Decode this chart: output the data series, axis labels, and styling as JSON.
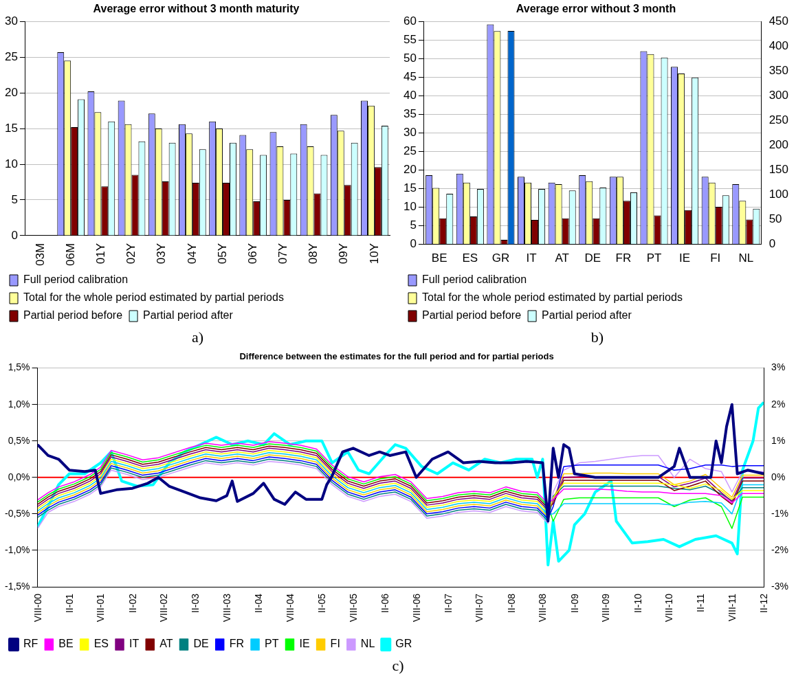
{
  "chart_data": [
    {
      "type": "bar",
      "title": "Average error without 3 month maturity",
      "categories": [
        "03M",
        "06M",
        "01Y",
        "02Y",
        "03Y",
        "04Y",
        "05Y",
        "06Y",
        "07Y",
        "08Y",
        "09Y",
        "10Y"
      ],
      "ylim": [
        0,
        30
      ],
      "yticks": [
        0,
        5,
        10,
        15,
        20,
        25,
        30
      ],
      "grid": "y",
      "legend": "bottom",
      "annotations": [
        "a)"
      ],
      "series": [
        {
          "name": "Full period calibration",
          "color": "#9999ff",
          "values": [
            null,
            25.7,
            20.2,
            18.9,
            17.1,
            15.6,
            16.0,
            14.1,
            14.5,
            15.6,
            16.9,
            18.9
          ]
        },
        {
          "name": "Total for the whole period estimated by partial periods",
          "color": "#ffff99",
          "values": [
            null,
            24.5,
            17.3,
            15.6,
            15.0,
            14.3,
            15.0,
            12.1,
            12.5,
            12.5,
            14.7,
            18.2
          ]
        },
        {
          "name": "Partial period before",
          "color": "#800000",
          "values": [
            null,
            15.2,
            6.9,
            8.5,
            7.6,
            7.4,
            7.4,
            4.8,
            5.0,
            5.9,
            7.1,
            9.6
          ]
        },
        {
          "name": "Partial period after",
          "color": "#ccffff",
          "values": [
            null,
            19.1,
            16.0,
            13.2,
            13.0,
            12.1,
            13.0,
            11.3,
            11.5,
            11.3,
            13.0,
            15.4
          ]
        }
      ]
    },
    {
      "type": "bar",
      "title": "Average error without 3 month",
      "categories": [
        "BE",
        "ES",
        "GR",
        "IT",
        "AT",
        "DE",
        "FR",
        "PT",
        "IE",
        "FI",
        "NL"
      ],
      "ylim": [
        0,
        60
      ],
      "yticks": [
        0,
        5,
        10,
        15,
        20,
        25,
        30,
        35,
        40,
        45,
        50,
        55,
        60
      ],
      "y2lim": [
        0,
        450
      ],
      "y2ticks": [
        0,
        50,
        100,
        150,
        200,
        250,
        300,
        350,
        400,
        450
      ],
      "grid": "y",
      "legend": "bottom",
      "annotations": [
        "b)"
      ],
      "series": [
        {
          "name": "Full period calibration",
          "color": "#9999ff",
          "values": [
            18.6,
            19.0,
            59.2,
            18.2,
            16.6,
            18.6,
            18.2,
            52.0,
            47.8,
            18.2,
            16.2
          ]
        },
        {
          "name": "Total for the whole period estimated by partial periods",
          "color": "#ffff99",
          "values": [
            15.2,
            16.6,
            57.4,
            16.6,
            16.2,
            17.0,
            18.2,
            51.2,
            46.0,
            16.6,
            11.7
          ]
        },
        {
          "name": "Partial period before",
          "color": "#800000",
          "values": [
            7.0,
            7.5,
            1.2,
            6.6,
            7.0,
            7.0,
            11.7,
            7.8,
            9.2,
            10.1,
            6.7
          ]
        },
        {
          "name": "Partial period after",
          "color": "#ccffff",
          "values": [
            13.6,
            14.9,
            null,
            14.9,
            14.5,
            15.3,
            14.0,
            50.3,
            44.9,
            13.2,
            9.6
          ]
        },
        {
          "color": "#0066cc",
          "axis": "y2",
          "values": [
            null,
            null,
            431,
            null,
            null,
            null,
            null,
            null,
            null,
            null,
            null
          ]
        }
      ]
    },
    {
      "type": "line",
      "title": "Difference between the estimates for the full period and for partial periods",
      "legend": "bottom",
      "grid": "y",
      "annotations": [
        "c)"
      ],
      "xlim": [
        "2000-08",
        "2012-02"
      ],
      "xticks": [
        {
          "value": "2000-08",
          "label": "VIII-00"
        },
        {
          "value": "2001-02",
          "label": "II-01"
        },
        {
          "value": "2001-08",
          "label": "VIII-01"
        },
        {
          "value": "2002-02",
          "label": "II-02"
        },
        {
          "value": "2002-08",
          "label": "VIII-02"
        },
        {
          "value": "2003-02",
          "label": "II-03"
        },
        {
          "value": "2003-08",
          "label": "VIII-03"
        },
        {
          "value": "2004-02",
          "label": "II-04"
        },
        {
          "value": "2004-08",
          "label": "VIII-04"
        },
        {
          "value": "2005-02",
          "label": "II-05"
        },
        {
          "value": "2005-08",
          "label": "VIII-05"
        },
        {
          "value": "2006-02",
          "label": "II-06"
        },
        {
          "value": "2006-08",
          "label": "VIII-06"
        },
        {
          "value": "2007-02",
          "label": "II-07"
        },
        {
          "value": "2007-08",
          "label": "VIII-07"
        },
        {
          "value": "2008-02",
          "label": "II-08"
        },
        {
          "value": "2008-08",
          "label": "VIII-08"
        },
        {
          "value": "2009-02",
          "label": "II-09"
        },
        {
          "value": "2009-08",
          "label": "VIII-09"
        },
        {
          "value": "2010-02",
          "label": "II-10"
        },
        {
          "value": "2010-08",
          "label": "VIII-10"
        },
        {
          "value": "2011-02",
          "label": "II-11"
        },
        {
          "value": "2011-08",
          "label": "VIII-11"
        },
        {
          "value": "2012-02",
          "label": "II-12"
        }
      ],
      "ylim": [
        -1.5,
        1.5
      ],
      "yticks": [
        {
          "value": -1.5,
          "label": "-1,5%"
        },
        {
          "value": -1.0,
          "label": "-1,0%"
        },
        {
          "value": -0.5,
          "label": "-0,5%"
        },
        {
          "value": 0,
          "label": "0,0%"
        },
        {
          "value": 0.5,
          "label": "0,5%"
        },
        {
          "value": 1.0,
          "label": "1,0%"
        },
        {
          "value": 1.5,
          "label": "1,5%"
        }
      ],
      "y2lim": [
        -3,
        3
      ],
      "y2ticks": [
        {
          "value": -3,
          "label": "-3%"
        },
        {
          "value": -2,
          "label": "-2%"
        },
        {
          "value": -1,
          "label": "-1%"
        },
        {
          "value": 0,
          "label": "0%"
        },
        {
          "value": 1,
          "label": "1%"
        },
        {
          "value": 2,
          "label": "2%"
        },
        {
          "value": 3,
          "label": "3%"
        }
      ],
      "ref_lines": [
        {
          "axis": "y",
          "value": 0,
          "color": "#ff0000"
        }
      ],
      "x": [
        "2000-08",
        "2000-10",
        "2000-12",
        "2001-03",
        "2001-06",
        "2001-08",
        "2001-10",
        "2002-01",
        "2002-04",
        "2002-07",
        "2002-10",
        "2003-01",
        "2003-04",
        "2003-07",
        "2003-10",
        "2004-01",
        "2004-04",
        "2004-07",
        "2004-10",
        "2005-01",
        "2005-04",
        "2005-07",
        "2005-10",
        "2006-01",
        "2006-04",
        "2006-07",
        "2006-10",
        "2007-01",
        "2007-04",
        "2007-07",
        "2007-10",
        "2008-01",
        "2008-04",
        "2008-07",
        "2008-09",
        "2008-10",
        "2008-12",
        "2009-03",
        "2009-06",
        "2009-09",
        "2009-12",
        "2010-03",
        "2010-06",
        "2010-09",
        "2010-12",
        "2011-03",
        "2011-06",
        "2011-08",
        "2011-10",
        "2011-12",
        "2012-02"
      ],
      "series": [
        {
          "name": "RF",
          "color": "#000080",
          "axis": "y2",
          "x": [
            "2000-08",
            "2000-10",
            "2000-12",
            "2001-02",
            "2001-05",
            "2001-07",
            "2001-08",
            "2001-11",
            "2002-02",
            "2002-05",
            "2002-07",
            "2002-09",
            "2002-12",
            "2003-03",
            "2003-06",
            "2003-08",
            "2003-09",
            "2003-10",
            "2004-01",
            "2004-03",
            "2004-05",
            "2004-07",
            "2004-09",
            "2004-11",
            "2005-02",
            "2005-03",
            "2005-04",
            "2005-06",
            "2005-08",
            "2005-11",
            "2006-01",
            "2006-03",
            "2006-06",
            "2006-08",
            "2006-11",
            "2007-02",
            "2007-05",
            "2007-08",
            "2007-11",
            "2008-02",
            "2008-05",
            "2008-08",
            "2008-09",
            "2008-10",
            "2008-11",
            "2008-12",
            "2009-01",
            "2009-02",
            "2009-06",
            "2010-01",
            "2010-06",
            "2010-09",
            "2010-10",
            "2010-12",
            "2011-04",
            "2011-05",
            "2011-06",
            "2011-07",
            "2011-08",
            "2011-09",
            "2011-11",
            "2012-02"
          ],
          "values": [
            0.9,
            0.6,
            0.5,
            0.2,
            0.16,
            0.2,
            -0.44,
            -0.34,
            -0.3,
            -0.16,
            0.0,
            -0.24,
            -0.4,
            -0.56,
            -0.64,
            -0.5,
            -0.1,
            -0.66,
            -0.44,
            -0.16,
            -0.6,
            -0.74,
            -0.4,
            -0.6,
            -0.6,
            -0.2,
            0.04,
            0.7,
            0.8,
            0.6,
            0.7,
            0.6,
            0.7,
            0.0,
            0.5,
            0.7,
            0.4,
            0.44,
            0.4,
            0.4,
            0.44,
            0.4,
            -1.2,
            0.8,
            0.0,
            0.9,
            0.8,
            0.1,
            0.0,
            0.0,
            0.0,
            0.3,
            0.8,
            0.0,
            0.0,
            1.0,
            0.4,
            1.4,
            2.0,
            0.1,
            0.2,
            0.1
          ]
        },
        {
          "name": "BE",
          "color": "#ff00ff",
          "values": [
            -0.31,
            -0.21,
            -0.13,
            -0.06,
            0.04,
            0.14,
            0.37,
            0.31,
            0.24,
            0.27,
            0.34,
            0.41,
            0.47,
            0.44,
            0.47,
            0.44,
            0.49,
            0.47,
            0.44,
            0.39,
            0.17,
            0.01,
            -0.06,
            0.01,
            0.04,
            -0.06,
            -0.29,
            -0.26,
            -0.21,
            -0.19,
            -0.21,
            -0.13,
            -0.19,
            -0.21,
            -0.36,
            -0.3,
            -0.16,
            -0.16,
            -0.16,
            -0.17,
            -0.19,
            -0.2,
            -0.2,
            -0.22,
            -0.22,
            -0.22,
            -0.25,
            -0.35,
            -0.22,
            -0.22,
            -0.22
          ]
        },
        {
          "name": "ES",
          "color": "#ffff00",
          "values": [
            -0.43,
            -0.33,
            -0.25,
            -0.18,
            -0.08,
            0.02,
            0.25,
            0.19,
            0.12,
            0.15,
            0.22,
            0.29,
            0.35,
            0.32,
            0.35,
            0.32,
            0.37,
            0.35,
            0.32,
            0.27,
            0.05,
            -0.11,
            -0.18,
            -0.11,
            -0.08,
            -0.18,
            -0.41,
            -0.38,
            -0.33,
            -0.31,
            -0.33,
            -0.25,
            -0.31,
            -0.33,
            -0.48,
            -0.28,
            -0.08,
            -0.08,
            -0.08,
            -0.08,
            -0.08,
            -0.08,
            -0.08,
            -0.1,
            -0.15,
            -0.09,
            -0.18,
            -0.3,
            -0.18,
            -0.18,
            -0.18
          ]
        },
        {
          "name": "IT",
          "color": "#800080",
          "values": [
            -0.4,
            -0.3,
            -0.22,
            -0.15,
            -0.05,
            0.05,
            0.28,
            0.22,
            0.15,
            0.18,
            0.25,
            0.32,
            0.38,
            0.35,
            0.38,
            0.35,
            0.4,
            0.38,
            0.35,
            0.3,
            0.08,
            -0.08,
            -0.15,
            -0.08,
            -0.05,
            -0.15,
            -0.38,
            -0.35,
            -0.3,
            -0.28,
            -0.3,
            -0.22,
            -0.28,
            -0.3,
            -0.45,
            -0.32,
            0.0,
            0.01,
            0.01,
            0.01,
            0.01,
            0.01,
            0.01,
            -0.13,
            -0.08,
            -0.01,
            -0.21,
            -0.33,
            -0.01,
            -0.01,
            -0.01
          ]
        },
        {
          "name": "AT",
          "color": "#800000",
          "values": [
            -0.37,
            -0.27,
            -0.19,
            -0.12,
            -0.02,
            0.08,
            0.31,
            0.25,
            0.18,
            0.21,
            0.28,
            0.35,
            0.41,
            0.38,
            0.41,
            0.38,
            0.43,
            0.41,
            0.38,
            0.33,
            0.11,
            -0.05,
            -0.12,
            -0.05,
            -0.02,
            -0.12,
            -0.35,
            -0.32,
            -0.27,
            -0.25,
            -0.27,
            -0.19,
            -0.25,
            -0.27,
            -0.42,
            -0.36,
            -0.04,
            -0.04,
            -0.04,
            -0.04,
            -0.04,
            -0.04,
            -0.04,
            -0.18,
            -0.12,
            -0.05,
            -0.26,
            -0.37,
            -0.05,
            -0.05,
            -0.05
          ]
        },
        {
          "name": "DE",
          "color": "#008080",
          "values": [
            -0.55,
            -0.45,
            -0.37,
            -0.3,
            -0.2,
            -0.1,
            0.13,
            0.07,
            0.0,
            0.03,
            0.1,
            0.17,
            0.23,
            0.2,
            0.23,
            0.2,
            0.25,
            0.23,
            0.2,
            0.15,
            -0.07,
            -0.23,
            -0.3,
            -0.23,
            -0.2,
            -0.3,
            -0.53,
            -0.5,
            -0.45,
            -0.43,
            -0.45,
            -0.37,
            -0.43,
            -0.45,
            -0.6,
            -0.26,
            -0.12,
            -0.12,
            -0.12,
            -0.12,
            -0.12,
            -0.12,
            -0.12,
            -0.15,
            -0.17,
            -0.12,
            -0.23,
            -0.32,
            -0.14,
            -0.14,
            -0.14
          ]
        },
        {
          "name": "FR",
          "color": "#0000ff",
          "values": [
            -0.52,
            -0.42,
            -0.34,
            -0.27,
            -0.17,
            -0.07,
            0.16,
            0.1,
            0.03,
            0.06,
            0.13,
            0.2,
            0.26,
            0.23,
            0.26,
            0.23,
            0.28,
            0.26,
            0.23,
            0.18,
            -0.04,
            -0.2,
            -0.27,
            -0.2,
            -0.17,
            -0.27,
            -0.5,
            -0.47,
            -0.42,
            -0.4,
            -0.42,
            -0.34,
            -0.4,
            -0.42,
            -0.57,
            -0.4,
            0.15,
            0.17,
            0.17,
            0.17,
            0.17,
            0.17,
            0.17,
            0.1,
            0.12,
            0.17,
            0.17,
            0.15,
            0.16,
            0.16,
            0.16
          ]
        },
        {
          "name": "PT",
          "color": "#00ccff",
          "values": [
            -0.46,
            -0.36,
            -0.28,
            -0.21,
            -0.11,
            -0.01,
            0.22,
            0.16,
            0.09,
            0.12,
            0.19,
            0.26,
            0.32,
            0.29,
            0.32,
            0.29,
            0.34,
            0.32,
            0.29,
            0.24,
            0.02,
            -0.14,
            -0.21,
            -0.14,
            -0.11,
            -0.21,
            -0.44,
            -0.41,
            -0.36,
            -0.34,
            -0.36,
            -0.28,
            -0.34,
            -0.36,
            -0.51,
            -0.5,
            -0.36,
            -0.36,
            -0.36,
            -0.36,
            -0.36,
            -0.36,
            -0.36,
            -0.38,
            -0.34,
            -0.33,
            -0.35,
            -0.5,
            -0.1,
            -0.1,
            -0.1
          ]
        },
        {
          "name": "IE",
          "color": "#00ff00",
          "values": [
            -0.34,
            -0.24,
            -0.16,
            -0.09,
            0.01,
            0.11,
            0.34,
            0.28,
            0.21,
            0.24,
            0.31,
            0.38,
            0.44,
            0.41,
            0.44,
            0.41,
            0.46,
            0.44,
            0.41,
            0.36,
            0.14,
            -0.02,
            -0.09,
            -0.02,
            0.01,
            -0.09,
            -0.32,
            -0.29,
            -0.24,
            -0.22,
            -0.24,
            -0.16,
            -0.22,
            -0.24,
            -0.39,
            -0.6,
            -0.3,
            -0.28,
            -0.28,
            -0.28,
            -0.28,
            -0.28,
            -0.28,
            -0.4,
            -0.31,
            -0.28,
            -0.4,
            -0.7,
            -0.27,
            -0.27,
            -0.27
          ]
        },
        {
          "name": "FI",
          "color": "#ffcc00",
          "values": [
            -0.49,
            -0.39,
            -0.31,
            -0.24,
            -0.14,
            -0.04,
            0.19,
            0.13,
            0.06,
            0.09,
            0.16,
            0.23,
            0.29,
            0.26,
            0.29,
            0.26,
            0.31,
            0.29,
            0.26,
            0.21,
            -0.01,
            -0.17,
            -0.24,
            -0.17,
            -0.14,
            -0.24,
            -0.47,
            -0.44,
            -0.39,
            -0.37,
            -0.39,
            -0.31,
            -0.37,
            -0.39,
            -0.54,
            -0.3,
            0.05,
            0.05,
            0.06,
            0.06,
            0.05,
            0.05,
            0.05,
            -0.1,
            -0.05,
            0.04,
            -0.15,
            -0.27,
            0.03,
            0.03,
            0.03
          ]
        },
        {
          "name": "NL",
          "color": "#cc99ff",
          "values": [
            -0.7,
            -0.48,
            -0.4,
            -0.33,
            -0.23,
            -0.13,
            0.1,
            0.04,
            -0.03,
            0.0,
            0.07,
            0.14,
            0.2,
            0.17,
            0.2,
            0.17,
            0.22,
            0.2,
            0.17,
            0.12,
            -0.1,
            -0.26,
            -0.33,
            -0.26,
            -0.23,
            -0.33,
            -0.56,
            -0.53,
            -0.48,
            -0.46,
            -0.48,
            -0.4,
            -0.46,
            -0.48,
            -0.63,
            -0.2,
            0.1,
            0.2,
            0.22,
            0.25,
            0.28,
            0.3,
            0.3,
            0.0,
            0.25,
            0.12,
            0.08,
            -0.2,
            0.08,
            0.08,
            0.08
          ]
        },
        {
          "name": "GR",
          "color": "#00ffff",
          "axis": "y2",
          "x": [
            "2000-08",
            "2000-10",
            "2000-12",
            "2001-02",
            "2001-05",
            "2001-08",
            "2001-10",
            "2001-12",
            "2002-03",
            "2002-06",
            "2002-09",
            "2002-12",
            "2003-03",
            "2003-06",
            "2003-09",
            "2003-12",
            "2004-03",
            "2004-05",
            "2004-08",
            "2004-11",
            "2005-02",
            "2005-04",
            "2005-07",
            "2005-09",
            "2005-11",
            "2006-02",
            "2006-04",
            "2006-06",
            "2006-09",
            "2006-12",
            "2007-03",
            "2007-06",
            "2007-09",
            "2007-12",
            "2008-03",
            "2008-06",
            "2008-07",
            "2008-08",
            "2008-09",
            "2008-10",
            "2008-11",
            "2009-01",
            "2009-02",
            "2009-04",
            "2009-06",
            "2009-09",
            "2009-10",
            "2010-01",
            "2010-04",
            "2010-07",
            "2010-10",
            "2011-01",
            "2011-05",
            "2011-08",
            "2011-09",
            "2011-10",
            "2011-12",
            "2012-01",
            "2012-02"
          ],
          "values": [
            -1.36,
            -0.8,
            -0.2,
            0.1,
            0.1,
            0.4,
            0.7,
            -0.1,
            -0.24,
            -0.2,
            0.4,
            0.7,
            0.9,
            1.1,
            0.9,
            1.0,
            0.9,
            1.2,
            0.9,
            1.0,
            1.0,
            0.4,
            0.7,
            0.2,
            0.1,
            0.6,
            0.9,
            0.8,
            0.3,
            0.1,
            0.4,
            0.2,
            0.5,
            0.4,
            0.5,
            0.5,
            0.0,
            0.5,
            -2.4,
            -1.2,
            -2.3,
            -2.0,
            -1.3,
            -1.0,
            -0.4,
            -0.1,
            -1.2,
            -1.8,
            -1.76,
            -1.7,
            -1.9,
            -1.7,
            -1.6,
            -1.8,
            -2.1,
            0.2,
            1.0,
            1.9,
            2.06
          ]
        }
      ]
    }
  ]
}
